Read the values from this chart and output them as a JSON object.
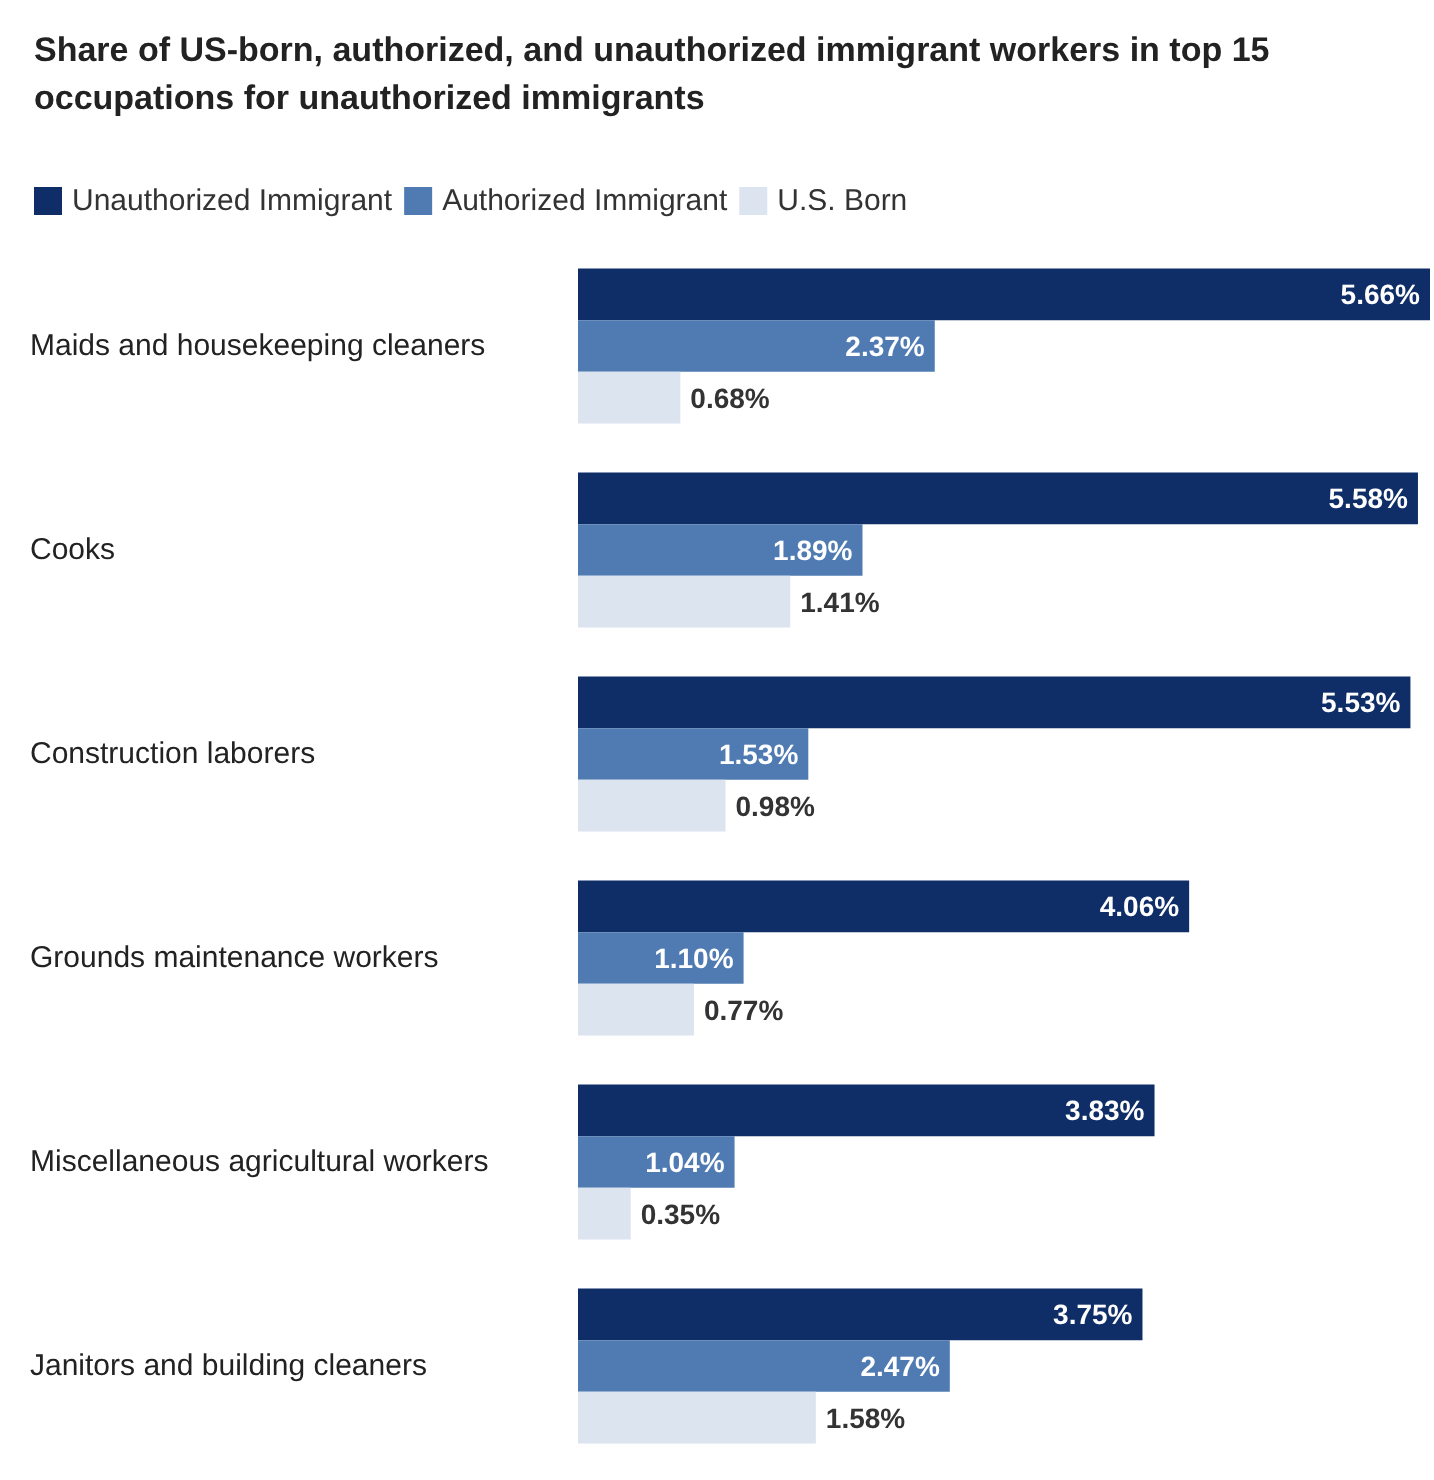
{
  "chart_data": {
    "type": "bar",
    "orientation": "horizontal",
    "title": "Share of US-born, authorized, and unauthorized immigrant workers in top 15 occupations for unauthorized immigrants",
    "categories": [
      "Maids and housekeeping cleaners",
      "Cooks",
      "Construction laborers",
      "Grounds maintenance workers",
      "Miscellaneous agricultural workers",
      "Janitors and building cleaners"
    ],
    "series": [
      {
        "name": "Unauthorized Immigrant",
        "color": "#0f2e67",
        "values": [
          5.66,
          5.58,
          5.53,
          4.06,
          3.83,
          3.75
        ],
        "value_labels": [
          "5.66%",
          "5.58%",
          "5.53%",
          "4.06%",
          "3.83%",
          "3.75%"
        ]
      },
      {
        "name": "Authorized Immigrant",
        "color": "#4f7bb2",
        "values": [
          2.37,
          1.89,
          1.53,
          1.1,
          1.04,
          2.47
        ],
        "value_labels": [
          "2.37%",
          "1.89%",
          "1.53%",
          "1.10%",
          "1.04%",
          "2.47%"
        ]
      },
      {
        "name": "U.S. Born",
        "color": "#dce4ef",
        "values": [
          0.68,
          1.41,
          0.98,
          0.77,
          0.35,
          1.58
        ],
        "value_labels": [
          "0.68%",
          "1.41%",
          "0.98%",
          "0.77%",
          "0.35%",
          "1.58%"
        ]
      }
    ],
    "legend": "top left"
  }
}
